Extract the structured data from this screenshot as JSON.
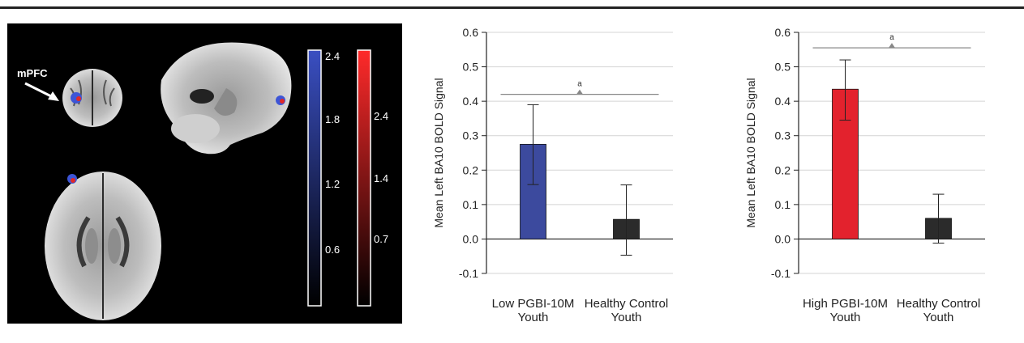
{
  "figure": {
    "brain_label": "mPFC",
    "blue_scale": {
      "color": "#2d3f9e",
      "ticks": [
        "2.4",
        "1.8",
        "1.2",
        "0.6"
      ]
    },
    "red_scale": {
      "color": "#e8262d",
      "ticks": [
        "2.4",
        "1.4",
        "0.7"
      ]
    }
  },
  "chart_data": [
    {
      "type": "bar",
      "categories": [
        "Low PGBI-10M Youth",
        "Healthy Control Youth"
      ],
      "category_lines": [
        [
          "Low PGBI-10M",
          "Youth"
        ],
        [
          "Healthy Control",
          "Youth"
        ]
      ],
      "values": [
        0.275,
        0.057
      ],
      "error_upper": [
        0.39,
        0.157
      ],
      "error_lower": [
        0.158,
        -0.047
      ],
      "colors": [
        "#3c4a9e",
        "#2b2b2b"
      ],
      "ylabel": "Mean Left BA10 BOLD Signal",
      "ylim": [
        -0.1,
        0.6
      ],
      "yticks": [
        "0.6",
        "0.5",
        "0.4",
        "0.3",
        "0.2",
        "0.1",
        "0.0",
        "-0.1"
      ],
      "grid": true,
      "significance": {
        "label": "a",
        "y": 0.42
      }
    },
    {
      "type": "bar",
      "categories": [
        "High PGBI-10M Youth",
        "Healthy Control Youth"
      ],
      "category_lines": [
        [
          "High PGBI-10M",
          "Youth"
        ],
        [
          "Healthy Control",
          "Youth"
        ]
      ],
      "values": [
        0.435,
        0.06
      ],
      "error_upper": [
        0.52,
        0.13
      ],
      "error_lower": [
        0.345,
        -0.012
      ],
      "colors": [
        "#e3222d",
        "#2b2b2b"
      ],
      "ylabel": "Mean Left BA10 BOLD Signal",
      "ylim": [
        -0.1,
        0.6
      ],
      "yticks": [
        "0.6",
        "0.5",
        "0.4",
        "0.3",
        "0.2",
        "0.1",
        "0.0",
        "-0.1"
      ],
      "grid": true,
      "significance": {
        "label": "a",
        "y": 0.555
      }
    }
  ]
}
